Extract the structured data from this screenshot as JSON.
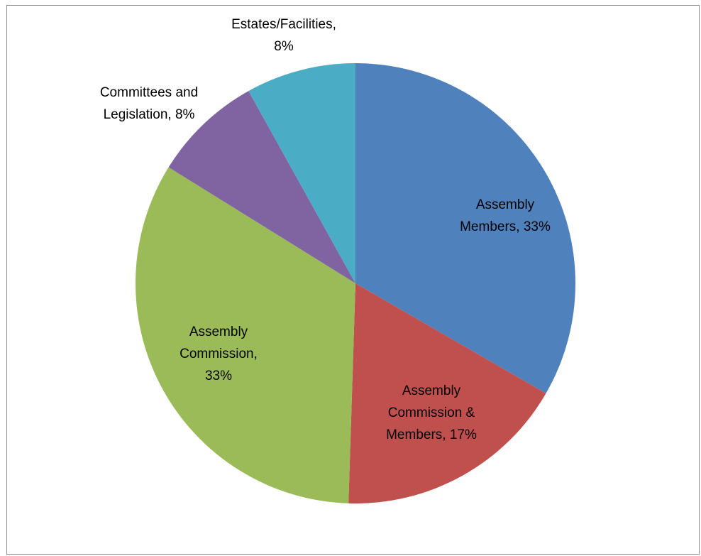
{
  "chart_data": {
    "type": "pie",
    "title": "",
    "legend": "none",
    "start_angle_deg": 0,
    "direction": "clockwise",
    "slices": [
      {
        "name": "Assembly Members",
        "value": 33,
        "color": "#4F81BD",
        "label_lines": [
          "Assembly",
          "Members, 33%"
        ]
      },
      {
        "name": "Assembly Commission & Members",
        "value": 17,
        "color": "#C0504D",
        "label_lines": [
          "Assembly",
          "Commission &",
          "Members, 17%"
        ]
      },
      {
        "name": "Assembly Commission",
        "value": 33,
        "color": "#9BBB59",
        "label_lines": [
          "Assembly",
          "Commission,",
          "33%"
        ]
      },
      {
        "name": "Committees and Legislation",
        "value": 8,
        "color": "#8064A2",
        "label_lines": [
          "Committees and",
          "Legislation, 8%"
        ]
      },
      {
        "name": "Estates/Facilities",
        "value": 8,
        "color": "#4BACC6",
        "label_lines": [
          "Estates/Facilities,",
          "8%"
        ]
      }
    ]
  }
}
